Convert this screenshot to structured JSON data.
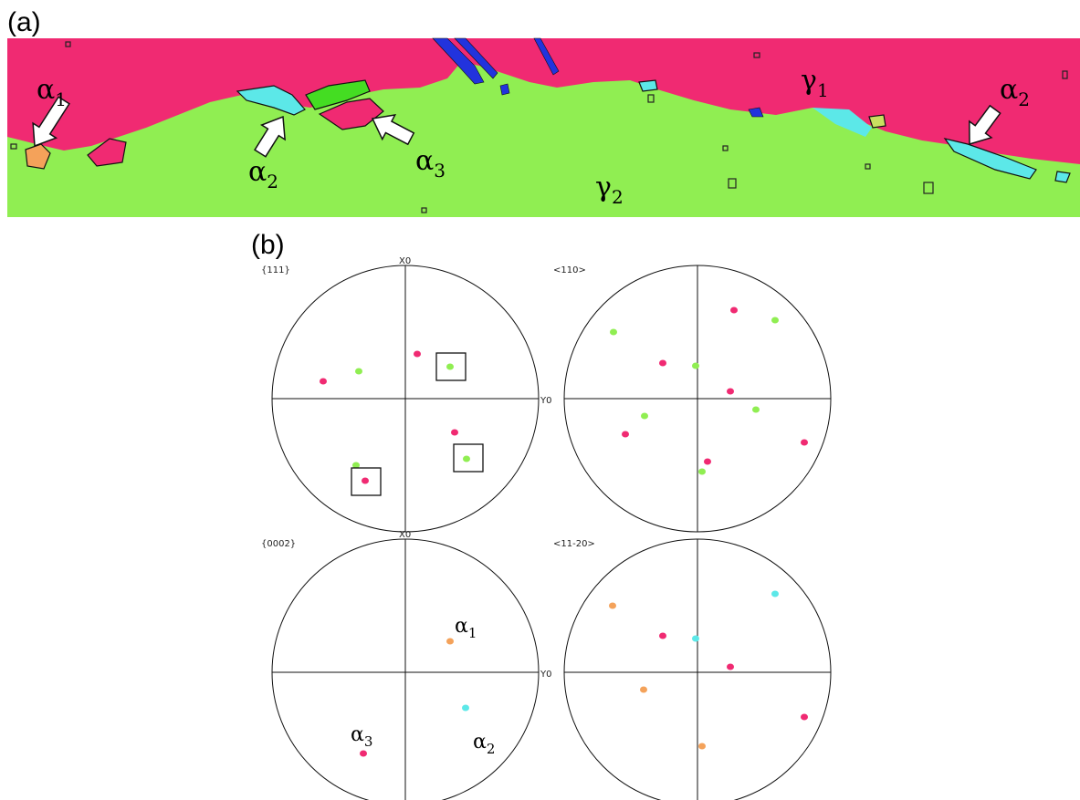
{
  "panel_a": {
    "label": "(a)",
    "annotations": [
      {
        "base": "α",
        "sub": "1"
      },
      {
        "base": "α",
        "sub": "2"
      },
      {
        "base": "α",
        "sub": "3"
      },
      {
        "base": "γ",
        "sub": "1"
      },
      {
        "base": "γ",
        "sub": "2"
      },
      {
        "base": "α",
        "sub": "2"
      }
    ]
  },
  "panel_b": {
    "label": "(b)",
    "pole_figures": [
      {
        "title": "{111}",
        "x_axis": "X0",
        "y_axis": "Y0"
      },
      {
        "title": "<110>"
      },
      {
        "title": "{0002}",
        "x_axis": "X0",
        "y_axis": "Y0"
      },
      {
        "title": "<11-20>"
      }
    ],
    "annotations": [
      {
        "base": "α",
        "sub": "1"
      },
      {
        "base": "α",
        "sub": "3"
      },
      {
        "base": "α",
        "sub": "2"
      }
    ]
  }
}
